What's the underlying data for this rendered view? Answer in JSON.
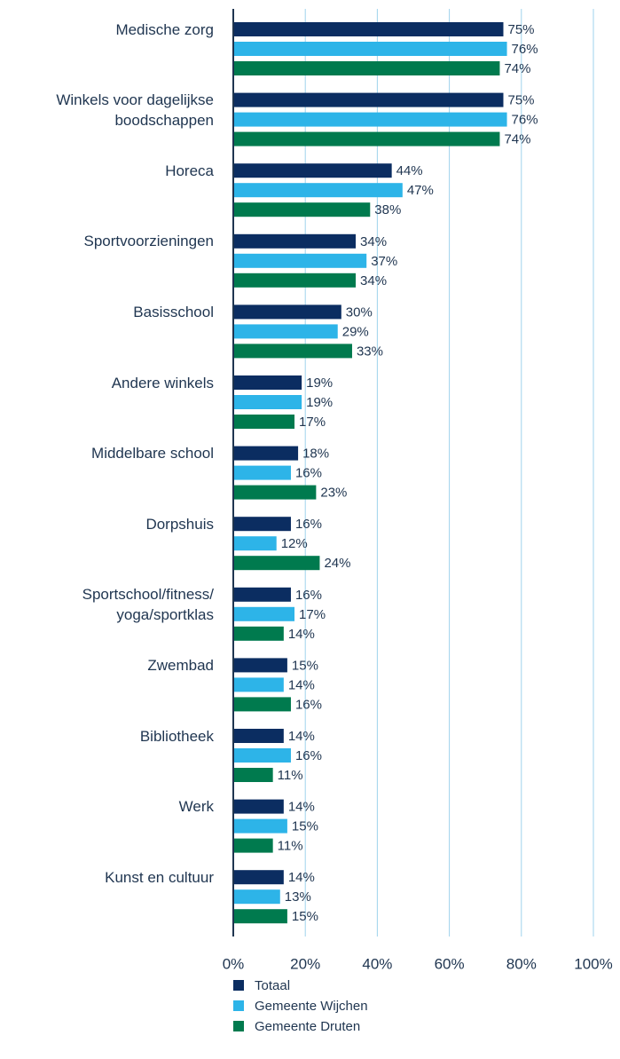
{
  "chart_data": {
    "type": "bar",
    "orientation": "horizontal",
    "categories": [
      "Medische zorg",
      "Winkels voor dagelijkse\nboodschappen",
      "Horeca",
      "Sportvoorzieningen",
      "Basisschool",
      "Andere winkels",
      "Middelbare school",
      "Dorpshuis",
      "Sportschool/fitness/\nyoga/sportklas",
      "Zwembad",
      "Bibliotheek",
      "Werk",
      "Kunst en cultuur"
    ],
    "series": [
      {
        "name": "Totaal",
        "color": "#0b2d61",
        "values": [
          75,
          75,
          44,
          34,
          30,
          19,
          18,
          16,
          16,
          15,
          14,
          14,
          14
        ],
        "value_labels": [
          "75%",
          "75%",
          "44%",
          "34%",
          "30%",
          "19%",
          "18%",
          "16%",
          "16%",
          "15%",
          "14%",
          "14%",
          "14%"
        ]
      },
      {
        "name": "Gemeente Wijchen",
        "color": "#2db4e8",
        "values": [
          76,
          76,
          47,
          37,
          29,
          19,
          16,
          12,
          17,
          14,
          16,
          15,
          13
        ],
        "value_labels": [
          "76%",
          "76%",
          "47%",
          "37%",
          "29%",
          "19%",
          "16%",
          "12%",
          "17%",
          "14%",
          "16%",
          "15%",
          "13%"
        ]
      },
      {
        "name": "Gemeente Druten",
        "color": "#007a4e",
        "values": [
          74,
          74,
          38,
          34,
          33,
          17,
          23,
          24,
          14,
          16,
          11,
          11,
          15
        ],
        "value_labels": [
          "74%",
          "74%",
          "38%",
          "34%",
          "33%",
          "17%",
          "23%",
          "24%",
          "14%",
          "16%",
          "11%",
          "11%",
          "15%"
        ]
      }
    ],
    "xlim": [
      0,
      100
    ],
    "xticks": [
      {
        "value": 0,
        "label": "0%"
      },
      {
        "value": 20,
        "label": "20%"
      },
      {
        "value": 40,
        "label": "40%"
      },
      {
        "value": 60,
        "label": "60%"
      },
      {
        "value": 80,
        "label": "80%"
      },
      {
        "value": 100,
        "label": "100%"
      }
    ],
    "grid": true,
    "legend": "bottom"
  }
}
